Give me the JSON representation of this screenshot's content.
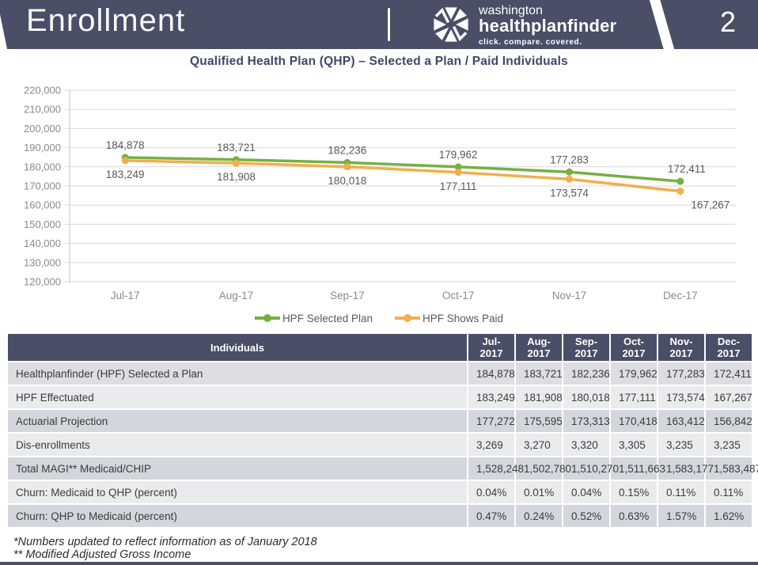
{
  "header": {
    "title": "Enrollment",
    "page_number": "2",
    "logo": {
      "region": "washington",
      "brand": "healthplanfinder",
      "tagline": "click. compare. covered."
    }
  },
  "chart_data": {
    "type": "line",
    "title": "Qualified Health Plan (QHP) – Selected a Plan / Paid Individuals",
    "categories": [
      "Jul-17",
      "Aug-17",
      "Sep-17",
      "Oct-17",
      "Nov-17",
      "Dec-17"
    ],
    "series": [
      {
        "name": "HPF Selected Plan",
        "color": "#76b041",
        "values": [
          184878,
          183721,
          182236,
          179962,
          177283,
          172411
        ]
      },
      {
        "name": "HPF Shows Paid",
        "color": "#f2ae4c",
        "values": [
          183249,
          181908,
          180018,
          177111,
          173574,
          167267
        ]
      }
    ],
    "ylim": [
      120000,
      220000
    ],
    "ytick_step": 10000,
    "grid": true,
    "legend_position": "bottom"
  },
  "table": {
    "header": [
      "Individuals",
      "Jul-2017",
      "Aug-2017",
      "Sep-2017",
      "Oct-2017",
      "Nov-2017",
      "Dec-2017"
    ],
    "rows": [
      {
        "label": "Healthplanfinder (HPF) Selected a Plan",
        "values": [
          "184,878",
          "183,721",
          "182,236",
          "179,962",
          "177,283",
          "172,411"
        ]
      },
      {
        "label": "HPF Effectuated",
        "values": [
          "183,249",
          "181,908",
          "180,018",
          "177,111",
          "173,574",
          "167,267"
        ]
      },
      {
        "label": "Actuarial Projection",
        "values": [
          "177,272",
          "175,595",
          "173,313",
          "170,418",
          "163,412",
          "156,842"
        ]
      },
      {
        "label": "Dis-enrollments",
        "values": [
          "3,269",
          "3,270",
          "3,320",
          "3,305",
          "3,235",
          "3,235"
        ]
      },
      {
        "label": "Total MAGI** Medicaid/CHIP",
        "values": [
          "1,528,248",
          "1,502,780",
          "1,510,270",
          "1,511,663",
          "1,583,177",
          "1,583,487"
        ]
      },
      {
        "label": "Churn: Medicaid to QHP (percent)",
        "values": [
          "0.04%",
          "0.01%",
          "0.04%",
          "0.15%",
          "0.11%",
          "0.11%"
        ]
      },
      {
        "label": "Churn: QHP to Medicaid (percent)",
        "values": [
          "0.47%",
          "0.24%",
          "0.52%",
          "0.63%",
          "1.57%",
          "1.62%"
        ]
      }
    ]
  },
  "footnotes": [
    "*Numbers updated to reflect information as of January 2018",
    "** Modified Adjusted Gross Income"
  ],
  "colors": {
    "navy": "#4a4e66",
    "green": "#76b041",
    "orange": "#f2ae4c",
    "grid": "#d9d9d9",
    "axis_text": "#8a8a8a",
    "data_label": "#595959"
  }
}
